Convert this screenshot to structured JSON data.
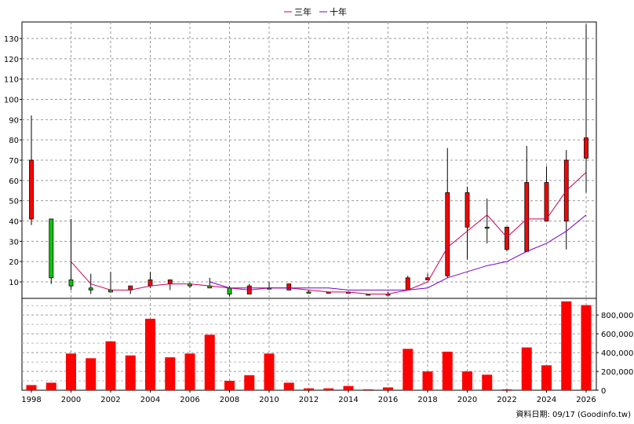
{
  "chart_data": [
    {
      "type": "candlestick",
      "legend": {
        "placement": "top-center",
        "items": [
          {
            "name": "三年",
            "color": "#cc0055"
          },
          {
            "name": "十年",
            "color": "#7700cc"
          }
        ]
      },
      "y_ticks": [
        10,
        20,
        30,
        40,
        50,
        60,
        70,
        80,
        90,
        100,
        110,
        120,
        130
      ],
      "ylim": [
        0,
        137
      ],
      "grid": true,
      "up_color": "#ff0000",
      "down_color": "#00cc00",
      "candles": [
        {
          "year": 1998,
          "open": 41,
          "close": 70,
          "high": 92,
          "low": 38
        },
        {
          "year": 1999,
          "open": 12,
          "close": 41,
          "high": 41,
          "low": 9
        },
        {
          "year": 2000,
          "open": 8,
          "close": 11,
          "high": 41,
          "low": 6
        },
        {
          "year": 2001,
          "open": 6,
          "close": 7,
          "high": 14,
          "low": 4
        },
        {
          "year": 2002,
          "open": 5,
          "close": 6,
          "high": 15,
          "low": 5
        },
        {
          "year": 2003,
          "open": 6,
          "close": 8,
          "high": 8,
          "low": 4
        },
        {
          "year": 2004,
          "open": 8,
          "close": 11,
          "high": 15,
          "low": 7
        },
        {
          "year": 2005,
          "open": 9,
          "close": 11,
          "high": 11,
          "low": 6
        },
        {
          "year": 2006,
          "open": 8,
          "close": 9,
          "high": 10,
          "low": 7
        },
        {
          "year": 2007,
          "open": 7,
          "close": 8,
          "high": 12,
          "low": 7
        },
        {
          "year": 2008,
          "open": 4,
          "close": 7,
          "high": 8,
          "low": 3
        },
        {
          "year": 2009,
          "open": 4,
          "close": 8,
          "high": 9,
          "low": 4
        },
        {
          "year": 2010,
          "open": 7,
          "close": 7,
          "high": 10,
          "low": 7
        },
        {
          "year": 2011,
          "open": 6,
          "close": 9,
          "high": 9,
          "low": 6
        },
        {
          "year": 2012,
          "open": 5,
          "close": 5,
          "high": 6,
          "low": 5
        },
        {
          "year": 2013,
          "open": 5,
          "close": 5,
          "high": 5,
          "low": 5
        },
        {
          "year": 2014,
          "open": 5,
          "close": 5,
          "high": 5,
          "low": 5
        },
        {
          "year": 2015,
          "open": 4,
          "close": 4,
          "high": 4,
          "low": 4
        },
        {
          "year": 2016,
          "open": 4,
          "close": 4,
          "high": 5,
          "low": 4
        },
        {
          "year": 2017,
          "open": 6,
          "close": 12,
          "high": 13,
          "low": 6
        },
        {
          "year": 2018,
          "open": 11,
          "close": 12,
          "high": 14,
          "low": 11
        },
        {
          "year": 2019,
          "open": 13,
          "close": 54,
          "high": 76,
          "low": 12
        },
        {
          "year": 2020,
          "open": 37,
          "close": 54,
          "high": 57,
          "low": 21
        },
        {
          "year": 2021,
          "open": 37,
          "close": 37,
          "high": 51,
          "low": 29
        },
        {
          "year": 2022,
          "open": 26,
          "close": 37,
          "high": 37,
          "low": 25
        },
        {
          "year": 2023,
          "open": 25,
          "close": 59,
          "high": 77,
          "low": 25
        },
        {
          "year": 2024,
          "open": 40,
          "close": 59,
          "high": 67,
          "low": 40
        },
        {
          "year": 2025,
          "open": 40,
          "close": 70,
          "high": 75,
          "low": 26
        },
        {
          "year": 2026,
          "open": 71,
          "close": 81,
          "high": 137,
          "low": 54
        }
      ],
      "series": [
        {
          "name": "三年",
          "color": "#cc0055",
          "points": [
            [
              2000,
              20
            ],
            [
              2001,
              9
            ],
            [
              2002,
              6
            ],
            [
              2003,
              6
            ],
            [
              2004,
              8
            ],
            [
              2005,
              9
            ],
            [
              2006,
              9
            ],
            [
              2007,
              8
            ],
            [
              2008,
              7
            ],
            [
              2009,
              6
            ],
            [
              2010,
              7
            ],
            [
              2011,
              7
            ],
            [
              2012,
              6
            ],
            [
              2013,
              5
            ],
            [
              2014,
              5
            ],
            [
              2015,
              4
            ],
            [
              2016,
              4
            ],
            [
              2017,
              6
            ],
            [
              2018,
              10
            ],
            [
              2019,
              27
            ],
            [
              2020,
              35
            ],
            [
              2021,
              43
            ],
            [
              2022,
              32
            ],
            [
              2023,
              41
            ],
            [
              2024,
              41
            ],
            [
              2025,
              55
            ],
            [
              2026,
              64
            ]
          ]
        },
        {
          "name": "十年",
          "color": "#7700cc",
          "points": [
            [
              2007,
              10
            ],
            [
              2008,
              7
            ],
            [
              2009,
              7
            ],
            [
              2010,
              7
            ],
            [
              2011,
              7
            ],
            [
              2012,
              7
            ],
            [
              2013,
              7
            ],
            [
              2014,
              6
            ],
            [
              2015,
              6
            ],
            [
              2016,
              6
            ],
            [
              2017,
              6
            ],
            [
              2018,
              7
            ],
            [
              2019,
              12
            ],
            [
              2020,
              15
            ],
            [
              2021,
              18
            ],
            [
              2022,
              20
            ],
            [
              2023,
              25
            ],
            [
              2024,
              29
            ],
            [
              2025,
              35
            ],
            [
              2026,
              43
            ]
          ]
        }
      ]
    },
    {
      "type": "bar",
      "color": "#ff0000",
      "y_ticks": [
        "0",
        "200,000",
        "400,000",
        "600,000",
        "800,000"
      ],
      "y_tick_values": [
        0,
        200000,
        400000,
        600000,
        800000
      ],
      "ylim": [
        0,
        960000
      ],
      "grid": true,
      "x_tick_labels": [
        "1998",
        "2000",
        "2002",
        "2004",
        "2006",
        "2008",
        "2010",
        "2012",
        "2014",
        "2016",
        "2018",
        "2020",
        "2022",
        "2024",
        "2026"
      ],
      "x_tick_years": [
        1998,
        2000,
        2002,
        2004,
        2006,
        2008,
        2010,
        2012,
        2014,
        2016,
        2018,
        2020,
        2022,
        2024,
        2026
      ],
      "categories": [
        1998,
        1999,
        2000,
        2001,
        2002,
        2003,
        2004,
        2005,
        2006,
        2007,
        2008,
        2009,
        2010,
        2011,
        2012,
        2013,
        2014,
        2015,
        2016,
        2017,
        2018,
        2019,
        2020,
        2021,
        2022,
        2023,
        2024,
        2025,
        2026
      ],
      "values": [
        55000,
        80000,
        390000,
        340000,
        520000,
        370000,
        760000,
        350000,
        390000,
        590000,
        100000,
        160000,
        390000,
        80000,
        20000,
        20000,
        45000,
        10000,
        30000,
        440000,
        200000,
        410000,
        200000,
        165000,
        10000,
        455000,
        265000,
        945000,
        905000
      ]
    }
  ],
  "footer": {
    "source": "資料日期: 09/17  (Goodinfo.tw)"
  }
}
